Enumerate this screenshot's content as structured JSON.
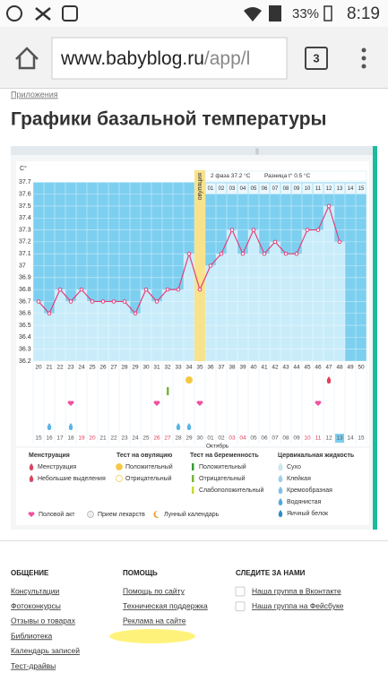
{
  "status": {
    "battery": "33%",
    "time": "8:19"
  },
  "browser": {
    "url_main": "www.babyblog.ru",
    "url_rest": "/app/l",
    "tabs": "3"
  },
  "breadcrumb": "Приложения",
  "title": "Графики базальной температуры",
  "chart_data": {
    "type": "line",
    "y_unit": "C°",
    "phase_label": "2 фаза 37.2 °C",
    "diff_label": "Разница t° 0.5 °C",
    "ovulation_label": "овуляция",
    "phase2_days": [
      "01",
      "02",
      "03",
      "04",
      "05",
      "06",
      "07",
      "08",
      "09",
      "10",
      "11",
      "12",
      "13",
      "14",
      "15"
    ],
    "categories": [
      "20",
      "21",
      "22",
      "23",
      "24",
      "25",
      "26",
      "27",
      "28",
      "29",
      "30",
      "31",
      "32",
      "33",
      "34",
      "35",
      "36",
      "37",
      "38",
      "39",
      "40",
      "41",
      "42",
      "43",
      "44",
      "45",
      "46",
      "47",
      "48",
      "49",
      "50"
    ],
    "dates": [
      "15",
      "16",
      "17",
      "18",
      "19",
      "20",
      "21",
      "22",
      "23",
      "24",
      "25",
      "26",
      "27",
      "28",
      "29",
      "30",
      "01",
      "02",
      "03",
      "04",
      "05",
      "06",
      "07",
      "08",
      "09",
      "10",
      "11",
      "12",
      "13",
      "14",
      "15"
    ],
    "date_colors": [
      "#555",
      "#555",
      "#555",
      "#555",
      "#e0405a",
      "#e0405a",
      "#555",
      "#555",
      "#555",
      "#555",
      "#555",
      "#e0405a",
      "#e0405a",
      "#555",
      "#555",
      "#555",
      "#555",
      "#555",
      "#e0405a",
      "#e0405a",
      "#555",
      "#555",
      "#555",
      "#555",
      "#555",
      "#e0405a",
      "#e0405a",
      "#555",
      "#555",
      "#555",
      "#555"
    ],
    "month_label": "Октябрь",
    "values": [
      36.7,
      36.6,
      36.8,
      36.7,
      36.8,
      36.7,
      36.7,
      36.7,
      36.7,
      36.6,
      36.8,
      36.7,
      36.8,
      36.8,
      37.1,
      36.8,
      37.0,
      37.1,
      37.3,
      37.1,
      37.3,
      37.1,
      37.2,
      37.1,
      37.1,
      37.3,
      37.3,
      37.5,
      37.2,
      null,
      null
    ],
    "color": "#e0407a",
    "fill_color": "#c9ecfa",
    "background_color": "#7dcff0",
    "ylim": [
      36.2,
      37.8
    ],
    "yticks": [
      36.2,
      36.3,
      36.4,
      36.5,
      36.6,
      36.7,
      36.8,
      36.9,
      37.0,
      37.1,
      37.2,
      37.3,
      37.4,
      37.5,
      37.6,
      37.7
    ],
    "grid": true
  },
  "legend": {
    "groups": [
      {
        "title": "Менструация",
        "items": [
          "Менструация",
          "Небольшие выделения"
        ]
      },
      {
        "title": "Тест на овуляцию",
        "items": [
          "Положительный",
          "Отрицательный"
        ]
      },
      {
        "title": "Тест на беременность",
        "items": [
          "Положительный",
          "Отрицательный",
          "Слабоположительный"
        ]
      },
      {
        "title": "Цервикальная жидкость",
        "items": [
          "Сухо",
          "Клейкая",
          "Кремообразная",
          "Водянистая",
          "Яичный белок"
        ]
      }
    ],
    "extras": [
      "Половой акт",
      "Прием лекарств",
      "Лунный календарь"
    ]
  },
  "footer": {
    "columns": [
      {
        "title": "ОБЩЕНИЕ",
        "links": [
          "Консультации",
          "Фотоконкурсы",
          "Отзывы о товарах",
          "Библиотека",
          "Календарь записей",
          "Тест-драйвы"
        ]
      },
      {
        "title": "ПОМОЩЬ",
        "links": [
          "Помощь по сайту",
          "Техническая поддержка",
          "Реклама на сайте"
        ]
      },
      {
        "title": "СЛЕДИТЕ ЗА НАМИ",
        "links": [
          "Наша группа в Вконтакте",
          "Наша группа на Фейсбуке"
        ]
      }
    ]
  }
}
